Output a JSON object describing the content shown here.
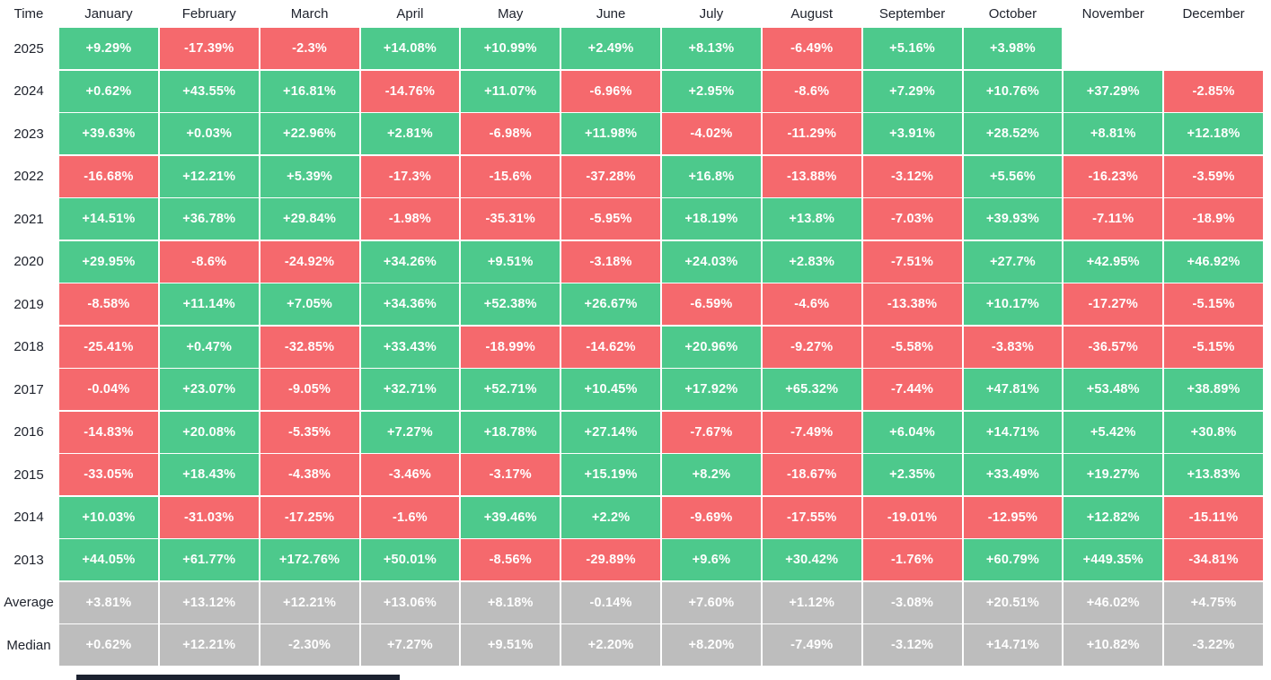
{
  "header": {
    "corner_label": "Time",
    "months": [
      "January",
      "February",
      "March",
      "April",
      "May",
      "June",
      "July",
      "August",
      "September",
      "October",
      "November",
      "December"
    ]
  },
  "rows": [
    {
      "label": "2025",
      "kind": "year",
      "values": [
        "+9.29%",
        "-17.39%",
        "-2.3%",
        "+14.08%",
        "+10.99%",
        "+2.49%",
        "+8.13%",
        "-6.49%",
        "+5.16%",
        "+3.98%",
        null,
        null
      ]
    },
    {
      "label": "2024",
      "kind": "year",
      "values": [
        "+0.62%",
        "+43.55%",
        "+16.81%",
        "-14.76%",
        "+11.07%",
        "-6.96%",
        "+2.95%",
        "-8.6%",
        "+7.29%",
        "+10.76%",
        "+37.29%",
        "-2.85%"
      ]
    },
    {
      "label": "2023",
      "kind": "year",
      "values": [
        "+39.63%",
        "+0.03%",
        "+22.96%",
        "+2.81%",
        "-6.98%",
        "+11.98%",
        "-4.02%",
        "-11.29%",
        "+3.91%",
        "+28.52%",
        "+8.81%",
        "+12.18%"
      ]
    },
    {
      "label": "2022",
      "kind": "year",
      "values": [
        "-16.68%",
        "+12.21%",
        "+5.39%",
        "-17.3%",
        "-15.6%",
        "-37.28%",
        "+16.8%",
        "-13.88%",
        "-3.12%",
        "+5.56%",
        "-16.23%",
        "-3.59%"
      ]
    },
    {
      "label": "2021",
      "kind": "year",
      "values": [
        "+14.51%",
        "+36.78%",
        "+29.84%",
        "-1.98%",
        "-35.31%",
        "-5.95%",
        "+18.19%",
        "+13.8%",
        "-7.03%",
        "+39.93%",
        "-7.11%",
        "-18.9%"
      ]
    },
    {
      "label": "2020",
      "kind": "year",
      "values": [
        "+29.95%",
        "-8.6%",
        "-24.92%",
        "+34.26%",
        "+9.51%",
        "-3.18%",
        "+24.03%",
        "+2.83%",
        "-7.51%",
        "+27.7%",
        "+42.95%",
        "+46.92%"
      ]
    },
    {
      "label": "2019",
      "kind": "year",
      "values": [
        "-8.58%",
        "+11.14%",
        "+7.05%",
        "+34.36%",
        "+52.38%",
        "+26.67%",
        "-6.59%",
        "-4.6%",
        "-13.38%",
        "+10.17%",
        "-17.27%",
        "-5.15%"
      ]
    },
    {
      "label": "2018",
      "kind": "year",
      "values": [
        "-25.41%",
        "+0.47%",
        "-32.85%",
        "+33.43%",
        "-18.99%",
        "-14.62%",
        "+20.96%",
        "-9.27%",
        "-5.58%",
        "-3.83%",
        "-36.57%",
        "-5.15%"
      ]
    },
    {
      "label": "2017",
      "kind": "year",
      "values": [
        "-0.04%",
        "+23.07%",
        "-9.05%",
        "+32.71%",
        "+52.71%",
        "+10.45%",
        "+17.92%",
        "+65.32%",
        "-7.44%",
        "+47.81%",
        "+53.48%",
        "+38.89%"
      ]
    },
    {
      "label": "2016",
      "kind": "year",
      "values": [
        "-14.83%",
        "+20.08%",
        "-5.35%",
        "+7.27%",
        "+18.78%",
        "+27.14%",
        "-7.67%",
        "-7.49%",
        "+6.04%",
        "+14.71%",
        "+5.42%",
        "+30.8%"
      ]
    },
    {
      "label": "2015",
      "kind": "year",
      "values": [
        "-33.05%",
        "+18.43%",
        "-4.38%",
        "-3.46%",
        "-3.17%",
        "+15.19%",
        "+8.2%",
        "-18.67%",
        "+2.35%",
        "+33.49%",
        "+19.27%",
        "+13.83%"
      ]
    },
    {
      "label": "2014",
      "kind": "year",
      "values": [
        "+10.03%",
        "-31.03%",
        "-17.25%",
        "-1.6%",
        "+39.46%",
        "+2.2%",
        "-9.69%",
        "-17.55%",
        "-19.01%",
        "-12.95%",
        "+12.82%",
        "-15.11%"
      ]
    },
    {
      "label": "2013",
      "kind": "year",
      "values": [
        "+44.05%",
        "+61.77%",
        "+172.76%",
        "+50.01%",
        "-8.56%",
        "-29.89%",
        "+9.6%",
        "+30.42%",
        "-1.76%",
        "+60.79%",
        "+449.35%",
        "-34.81%"
      ]
    },
    {
      "label": "Average",
      "kind": "summary",
      "values": [
        "+3.81%",
        "+13.12%",
        "+12.21%",
        "+13.06%",
        "+8.18%",
        "-0.14%",
        "+7.60%",
        "+1.12%",
        "-3.08%",
        "+20.51%",
        "+46.02%",
        "+4.75%"
      ]
    },
    {
      "label": "Median",
      "kind": "summary",
      "values": [
        "+0.62%",
        "+12.21%",
        "-2.30%",
        "+7.27%",
        "+9.51%",
        "+2.20%",
        "+8.20%",
        "-7.49%",
        "-3.12%",
        "+14.71%",
        "+10.82%",
        "-3.22%"
      ]
    }
  ],
  "colors": {
    "positive_bg": "#4dc98c",
    "negative_bg": "#f5696d",
    "summary_bg": "#bdbdbd",
    "cell_text": "#ffffff",
    "label_text": "#20242e",
    "bottom_bar": "#1c2230"
  },
  "chart_data": {
    "type": "heatmap",
    "title": "Monthly returns (%) heatmap by year and month",
    "x_labels": [
      "January",
      "February",
      "March",
      "April",
      "May",
      "June",
      "July",
      "August",
      "September",
      "October",
      "November",
      "December"
    ],
    "y_labels": [
      "2025",
      "2024",
      "2023",
      "2022",
      "2021",
      "2020",
      "2019",
      "2018",
      "2017",
      "2016",
      "2015",
      "2014",
      "2013",
      "Average",
      "Median"
    ],
    "values": [
      [
        9.29,
        -17.39,
        -2.3,
        14.08,
        10.99,
        2.49,
        8.13,
        -6.49,
        5.16,
        3.98,
        null,
        null
      ],
      [
        0.62,
        43.55,
        16.81,
        -14.76,
        11.07,
        -6.96,
        2.95,
        -8.6,
        7.29,
        10.76,
        37.29,
        -2.85
      ],
      [
        39.63,
        0.03,
        22.96,
        2.81,
        -6.98,
        11.98,
        -4.02,
        -11.29,
        3.91,
        28.52,
        8.81,
        12.18
      ],
      [
        -16.68,
        12.21,
        5.39,
        -17.3,
        -15.6,
        -37.28,
        16.8,
        -13.88,
        -3.12,
        5.56,
        -16.23,
        -3.59
      ],
      [
        14.51,
        36.78,
        29.84,
        -1.98,
        -35.31,
        -5.95,
        18.19,
        13.8,
        -7.03,
        39.93,
        -7.11,
        -18.9
      ],
      [
        29.95,
        -8.6,
        -24.92,
        34.26,
        9.51,
        -3.18,
        24.03,
        2.83,
        -7.51,
        27.7,
        42.95,
        46.92
      ],
      [
        -8.58,
        11.14,
        7.05,
        34.36,
        52.38,
        26.67,
        -6.59,
        -4.6,
        -13.38,
        10.17,
        -17.27,
        -5.15
      ],
      [
        -25.41,
        0.47,
        -32.85,
        33.43,
        -18.99,
        -14.62,
        20.96,
        -9.27,
        -5.58,
        -3.83,
        -36.57,
        -5.15
      ],
      [
        -0.04,
        23.07,
        -9.05,
        32.71,
        52.71,
        10.45,
        17.92,
        65.32,
        -7.44,
        47.81,
        53.48,
        38.89
      ],
      [
        -14.83,
        20.08,
        -5.35,
        7.27,
        18.78,
        27.14,
        -7.67,
        -7.49,
        6.04,
        14.71,
        5.42,
        30.8
      ],
      [
        -33.05,
        18.43,
        -4.38,
        -3.46,
        -3.17,
        15.19,
        8.2,
        -18.67,
        2.35,
        33.49,
        19.27,
        13.83
      ],
      [
        10.03,
        -31.03,
        -17.25,
        -1.6,
        39.46,
        2.2,
        -9.69,
        -17.55,
        -19.01,
        -12.95,
        12.82,
        -15.11
      ],
      [
        44.05,
        61.77,
        172.76,
        50.01,
        -8.56,
        -29.89,
        9.6,
        30.42,
        -1.76,
        60.79,
        449.35,
        -34.81
      ],
      [
        3.81,
        13.12,
        12.21,
        13.06,
        8.18,
        -0.14,
        7.6,
        1.12,
        -3.08,
        20.51,
        46.02,
        4.75
      ],
      [
        0.62,
        12.21,
        -2.3,
        7.27,
        9.51,
        2.2,
        8.2,
        -7.49,
        -3.12,
        14.71,
        10.82,
        -3.22
      ]
    ],
    "legend_position": "none",
    "grid": false,
    "color_rule": "green = positive value, red = negative value, gray = summary rows (Average, Median); missing months (Nov/Dec 2025) are blank"
  }
}
